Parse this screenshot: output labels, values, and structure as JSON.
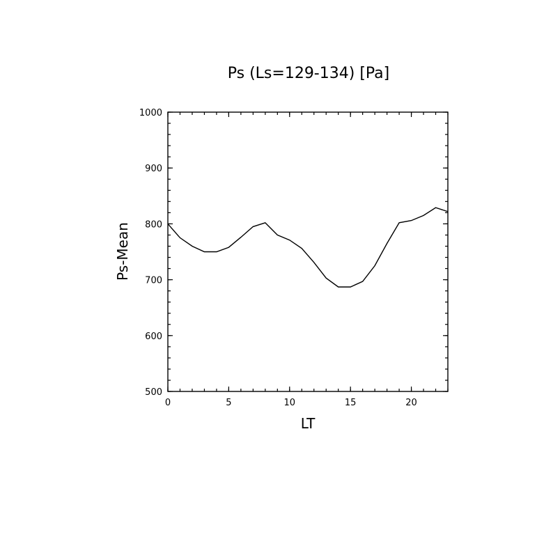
{
  "chart_data": {
    "type": "line",
    "title": "Ps (Ls=129-134) [Pa]",
    "xlabel": "LT",
    "ylabel": "Ps-Mean",
    "xlim": [
      0,
      23
    ],
    "ylim": [
      500,
      1000
    ],
    "xticks": [
      0,
      5,
      10,
      15,
      20
    ],
    "yticks": [
      500,
      600,
      700,
      800,
      900,
      1000
    ],
    "x_minor_step": 1,
    "y_minor_step": 20,
    "grid": false,
    "legend": "none",
    "series": [
      {
        "line_color": "#000000",
        "x": [
          0,
          1,
          2,
          3,
          4,
          5,
          6,
          7,
          8,
          9,
          10,
          11,
          12,
          13,
          14,
          15,
          16,
          17,
          18,
          19,
          20,
          21,
          22,
          23
        ],
        "y": [
          800,
          775,
          760,
          750,
          750,
          758,
          776,
          795,
          802,
          780,
          771,
          756,
          731,
          703,
          687,
          687,
          697,
          725,
          765,
          802,
          806,
          815,
          829,
          822
        ]
      }
    ]
  }
}
